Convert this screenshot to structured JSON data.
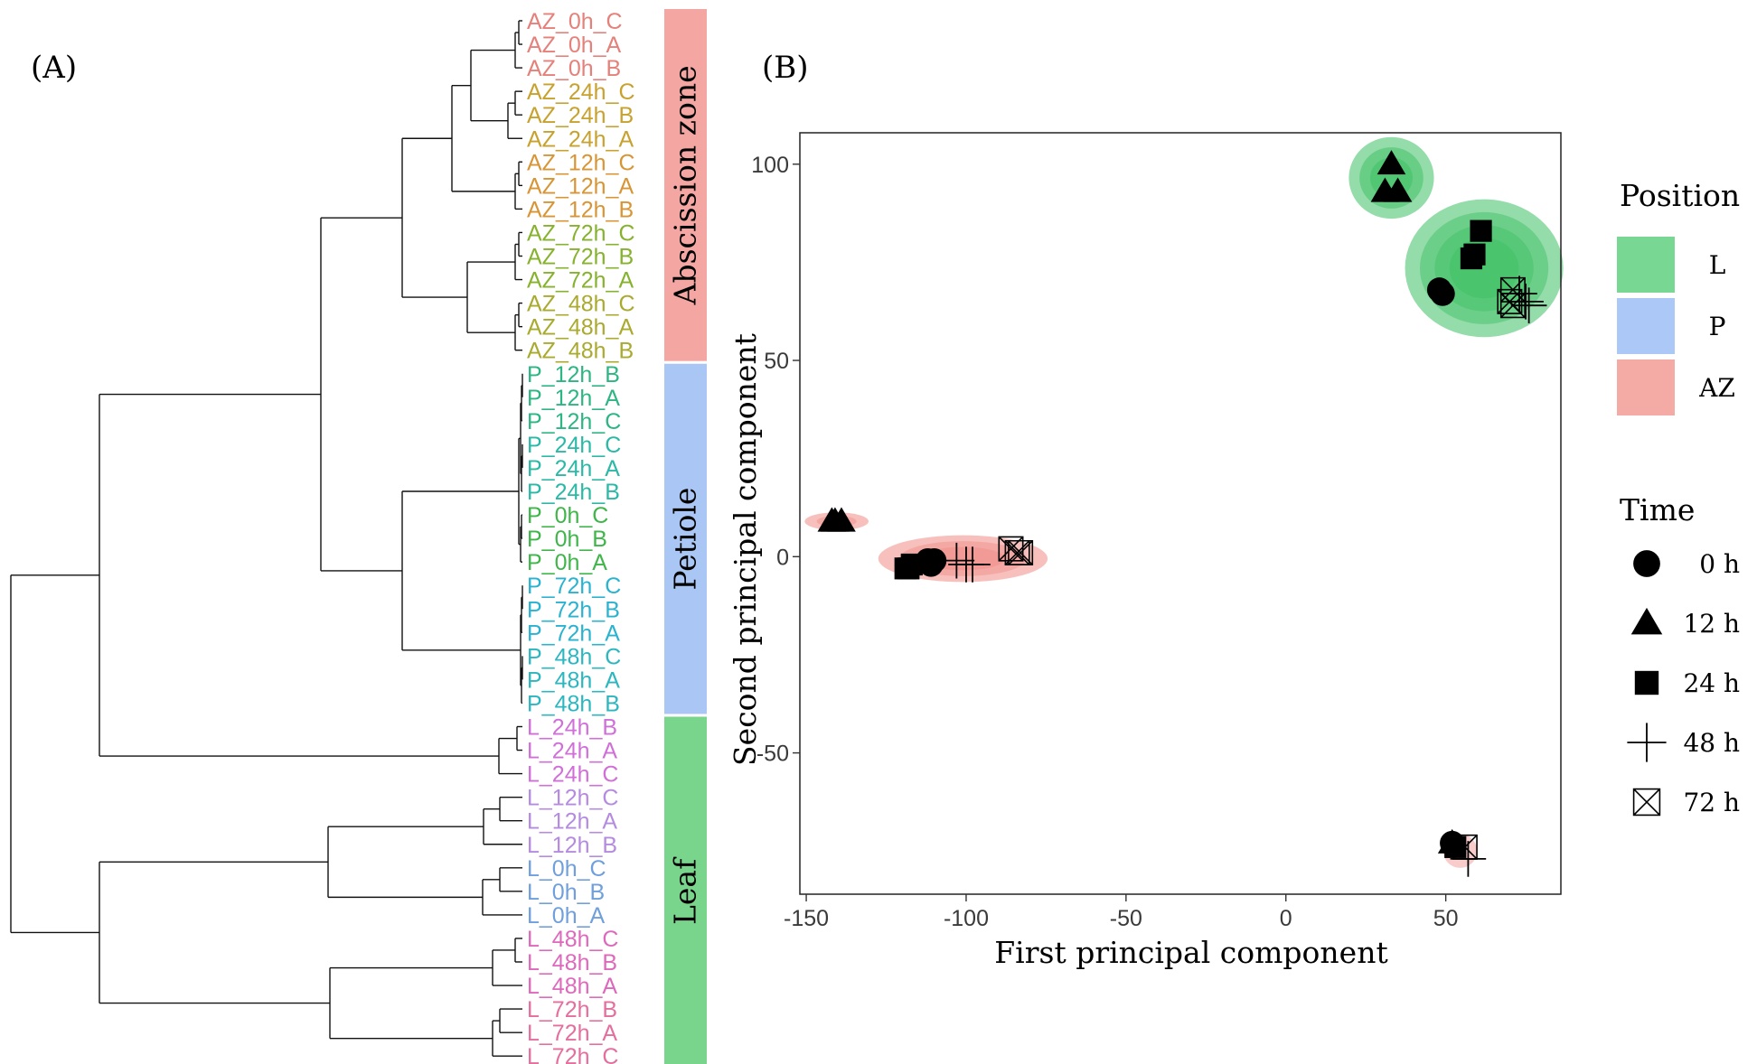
{
  "panels": {
    "a_label": "(A)",
    "b_label": "(B)"
  },
  "dendrogram": {
    "leaves": [
      {
        "label": "AZ_0h_C",
        "color": "#E5807A"
      },
      {
        "label": "AZ_0h_A",
        "color": "#E5807A"
      },
      {
        "label": "AZ_0h_B",
        "color": "#E5807A"
      },
      {
        "label": "AZ_24h_C",
        "color": "#C8A22E"
      },
      {
        "label": "AZ_24h_B",
        "color": "#C8A22E"
      },
      {
        "label": "AZ_24h_A",
        "color": "#C8A22E"
      },
      {
        "label": "AZ_12h_C",
        "color": "#D89535"
      },
      {
        "label": "AZ_12h_A",
        "color": "#D89535"
      },
      {
        "label": "AZ_12h_B",
        "color": "#D89535"
      },
      {
        "label": "AZ_72h_C",
        "color": "#86B22E"
      },
      {
        "label": "AZ_72h_B",
        "color": "#86B22E"
      },
      {
        "label": "AZ_72h_A",
        "color": "#86B22E"
      },
      {
        "label": "AZ_48h_C",
        "color": "#A9AA2E"
      },
      {
        "label": "AZ_48h_A",
        "color": "#A9AA2E"
      },
      {
        "label": "AZ_48h_B",
        "color": "#A9AA2E"
      },
      {
        "label": "P_12h_B",
        "color": "#2DB583"
      },
      {
        "label": "P_12h_A",
        "color": "#2DB583"
      },
      {
        "label": "P_12h_C",
        "color": "#2DB583"
      },
      {
        "label": "P_24h_C",
        "color": "#2BB8A6"
      },
      {
        "label": "P_24h_A",
        "color": "#2BB8A6"
      },
      {
        "label": "P_24h_B",
        "color": "#2BB8A6"
      },
      {
        "label": "P_0h_C",
        "color": "#3FB54A"
      },
      {
        "label": "P_0h_B",
        "color": "#3FB54A"
      },
      {
        "label": "P_0h_A",
        "color": "#3FB54A"
      },
      {
        "label": "P_72h_C",
        "color": "#2AB3D0"
      },
      {
        "label": "P_72h_B",
        "color": "#2AB3D0"
      },
      {
        "label": "P_72h_A",
        "color": "#2AB3D0"
      },
      {
        "label": "P_48h_C",
        "color": "#2BB6C0"
      },
      {
        "label": "P_48h_A",
        "color": "#2BB6C0"
      },
      {
        "label": "P_48h_B",
        "color": "#2BB6C0"
      },
      {
        "label": "L_24h_B",
        "color": "#D06FD8"
      },
      {
        "label": "L_24h_A",
        "color": "#D06FD8"
      },
      {
        "label": "L_24h_C",
        "color": "#D06FD8"
      },
      {
        "label": "L_12h_C",
        "color": "#B58BE0"
      },
      {
        "label": "L_12h_A",
        "color": "#B58BE0"
      },
      {
        "label": "L_12h_B",
        "color": "#B58BE0"
      },
      {
        "label": "L_0h_C",
        "color": "#6F9FDC"
      },
      {
        "label": "L_0h_B",
        "color": "#6F9FDC"
      },
      {
        "label": "L_0h_A",
        "color": "#6F9FDC"
      },
      {
        "label": "L_48h_C",
        "color": "#DE69BC"
      },
      {
        "label": "L_48h_B",
        "color": "#DE69BC"
      },
      {
        "label": "L_48h_A",
        "color": "#DE69BC"
      },
      {
        "label": "L_72h_B",
        "color": "#E46E9E"
      },
      {
        "label": "L_72h_A",
        "color": "#E46E9E"
      },
      {
        "label": "L_72h_C",
        "color": "#E46E9E"
      }
    ],
    "bands": [
      {
        "label": "Abscission zone",
        "color": "#F4A6A2",
        "first_leaf": 0,
        "last_leaf": 14
      },
      {
        "label": "Petiole",
        "color": "#A9C6F5",
        "first_leaf": 15,
        "last_leaf": 29
      },
      {
        "label": "Leaf",
        "color": "#7AD58C",
        "first_leaf": 30,
        "last_leaf": 44
      }
    ]
  },
  "chart_data": {
    "type": "scatter",
    "xlabel": "First principal component",
    "ylabel": "Second principal component",
    "xlim": [
      -152,
      86
    ],
    "ylim": [
      -86,
      108
    ],
    "xticks": [
      -150,
      -100,
      -50,
      0,
      50
    ],
    "yticks": [
      100,
      50,
      0,
      -50
    ],
    "grid": false,
    "legend_position": "right",
    "position_legend": {
      "title": "Position",
      "items": [
        {
          "label": "L",
          "color": "#78D793"
        },
        {
          "label": "P",
          "color": "#ABC8F6"
        },
        {
          "label": "AZ",
          "color": "#F4AAA5"
        }
      ]
    },
    "time_legend": {
      "title": "Time",
      "items": [
        {
          "label": "0 h",
          "shape": "circle"
        },
        {
          "label": "12 h",
          "shape": "triangle"
        },
        {
          "label": "24 h",
          "shape": "square"
        },
        {
          "label": "48 h",
          "shape": "plus"
        },
        {
          "label": "72 h",
          "shape": "boxed-x"
        }
      ]
    },
    "points": [
      {
        "group": "L",
        "time": "12 h",
        "x": 33,
        "y": 100
      },
      {
        "group": "L",
        "time": "12 h",
        "x": 31,
        "y": 93
      },
      {
        "group": "L",
        "time": "12 h",
        "x": 35,
        "y": 93
      },
      {
        "group": "L",
        "time": "24 h",
        "x": 61,
        "y": 83
      },
      {
        "group": "L",
        "time": "24 h",
        "x": 59,
        "y": 77
      },
      {
        "group": "L",
        "time": "24 h",
        "x": 58,
        "y": 76
      },
      {
        "group": "L",
        "time": "0 h",
        "x": 48,
        "y": 68
      },
      {
        "group": "L",
        "time": "0 h",
        "x": 49,
        "y": 67
      },
      {
        "group": "L",
        "time": "72 h",
        "x": 71,
        "y": 68
      },
      {
        "group": "L",
        "time": "72 h",
        "x": 70,
        "y": 65
      },
      {
        "group": "L",
        "time": "72 h",
        "x": 71,
        "y": 64
      },
      {
        "group": "L",
        "time": "48 h",
        "x": 73,
        "y": 67
      },
      {
        "group": "L",
        "time": "48 h",
        "x": 75,
        "y": 65
      },
      {
        "group": "L",
        "time": "48 h",
        "x": 76,
        "y": 64
      },
      {
        "group": "AZ",
        "time": "12 h",
        "x": -142,
        "y": 9
      },
      {
        "group": "AZ",
        "time": "12 h",
        "x": -141,
        "y": 9
      },
      {
        "group": "AZ",
        "time": "12 h",
        "x": -139,
        "y": 9
      },
      {
        "group": "AZ",
        "time": "0 h",
        "x": -112,
        "y": -1
      },
      {
        "group": "AZ",
        "time": "0 h",
        "x": -111,
        "y": -2
      },
      {
        "group": "AZ",
        "time": "0 h",
        "x": -110,
        "y": -1
      },
      {
        "group": "AZ",
        "time": "24 h",
        "x": -119,
        "y": -3
      },
      {
        "group": "AZ",
        "time": "24 h",
        "x": -118,
        "y": -3
      },
      {
        "group": "AZ",
        "time": "24 h",
        "x": -117,
        "y": -2
      },
      {
        "group": "AZ",
        "time": "48 h",
        "x": -103,
        "y": -1
      },
      {
        "group": "AZ",
        "time": "48 h",
        "x": -100,
        "y": -2
      },
      {
        "group": "AZ",
        "time": "48 h",
        "x": -98,
        "y": -2
      },
      {
        "group": "AZ",
        "time": "72 h",
        "x": -86,
        "y": 2
      },
      {
        "group": "AZ",
        "time": "72 h",
        "x": -84,
        "y": 1
      },
      {
        "group": "AZ",
        "time": "72 h",
        "x": -83,
        "y": 1
      },
      {
        "group": "P",
        "time": "0 h",
        "x": 52,
        "y": -73
      },
      {
        "group": "P",
        "time": "12 h",
        "x": 52,
        "y": -73
      },
      {
        "group": "P",
        "time": "24 h",
        "x": 53,
        "y": -74
      },
      {
        "group": "P",
        "time": "72 h",
        "x": 56,
        "y": -74
      },
      {
        "group": "P",
        "time": "48 h",
        "x": 57,
        "y": -77
      }
    ]
  }
}
